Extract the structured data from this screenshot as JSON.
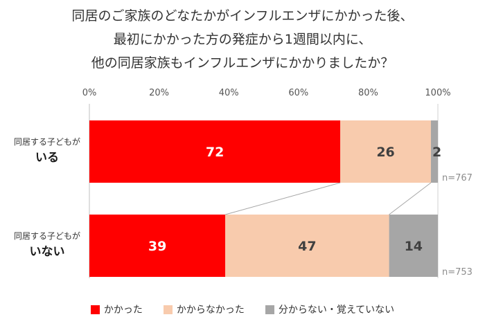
{
  "chart_data": {
    "type": "bar",
    "orientation": "horizontal",
    "stacked": true,
    "title_lines": [
      "同居のご家族のどなたかがインフルエンザにかかった後、",
      "最初にかかった方の発症から1週間以内に、",
      "他の同居家族もインフルエンザにかかりましたか？"
    ],
    "x_ticks": [
      "0%",
      "20%",
      "40%",
      "60%",
      "80%",
      "100%"
    ],
    "xlim": [
      0,
      100
    ],
    "categories": [
      {
        "line1": "同居する子どもが",
        "line2": "いる",
        "n": "n=767"
      },
      {
        "line1": "同居する子どもが",
        "line2": "いない",
        "n": "n=753"
      }
    ],
    "series": [
      {
        "name": "かかった",
        "color": "#ff0000",
        "label_color": "#ffffff",
        "values": [
          72,
          39
        ]
      },
      {
        "name": "かからなかった",
        "color": "#f8cbad",
        "label_color": "#404040",
        "values": [
          26,
          47
        ]
      },
      {
        "name": "分からない・覚えていない",
        "color": "#a6a6a6",
        "label_color": "#404040",
        "values": [
          2,
          14
        ]
      }
    ],
    "legend_position": "bottom",
    "grid": false
  }
}
